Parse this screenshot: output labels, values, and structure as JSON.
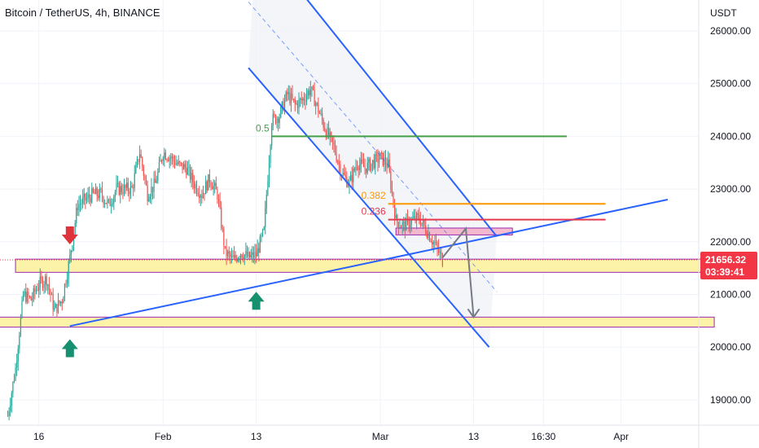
{
  "header": {
    "title": "Bitcoin / TetherUS, 4h, BINANCE"
  },
  "chart_data": {
    "type": "candlestick",
    "currency_label": "USDT",
    "y_ticks": [
      26000,
      25000,
      24000,
      23000,
      22000,
      21000,
      20000,
      19000
    ],
    "y_tick_labels": [
      "26000.00",
      "25000.00",
      "24000.00",
      "23000.00",
      "22000.00",
      "21000.00",
      "20000.00",
      "19000.00"
    ],
    "ylim": [
      18600,
      26500
    ],
    "x_range": [
      "2023-01-11",
      "2023-04-11"
    ],
    "x_ticks": [
      {
        "x": "2023-01-16",
        "label": "16"
      },
      {
        "x": "2023-02-01",
        "label": "Feb"
      },
      {
        "x": "2023-02-13",
        "label": "13"
      },
      {
        "x": "2023-03-01",
        "label": "Mar"
      },
      {
        "x": "2023-03-13",
        "label": "13"
      },
      {
        "x": "2023-03-22",
        "label": "16:30"
      },
      {
        "x": "2023-04-01",
        "label": "Apr"
      }
    ],
    "last_price": 21656.32,
    "last_price_label": "21656.32",
    "countdown": "03:39:41",
    "colors": {
      "up": "#26a69a",
      "down": "#ef5350",
      "channel": "#2962ff",
      "zone_fill": "#fdf3a8",
      "zone_border": "#9c27b0",
      "price_badge": "#f23645",
      "pink_zone": "#f48fb1",
      "projection": "#787b86"
    },
    "price_path": [
      [
        "2023-01-12",
        18700
      ],
      [
        "2023-01-13",
        19600
      ],
      [
        "2023-01-14",
        21000
      ],
      [
        "2023-01-15",
        20900
      ],
      [
        "2023-01-16",
        21200
      ],
      [
        "2023-01-17",
        21300
      ],
      [
        "2023-01-18",
        20700
      ],
      [
        "2023-01-19",
        20900
      ],
      [
        "2023-01-20",
        21700
      ],
      [
        "2023-01-21",
        22700
      ],
      [
        "2023-01-22",
        22800
      ],
      [
        "2023-01-23",
        22900
      ],
      [
        "2023-01-24",
        22900
      ],
      [
        "2023-01-25",
        22700
      ],
      [
        "2023-01-26",
        23000
      ],
      [
        "2023-01-27",
        23000
      ],
      [
        "2023-01-28",
        23000
      ],
      [
        "2023-01-29",
        23700
      ],
      [
        "2023-01-30",
        22900
      ],
      [
        "2023-01-31",
        23100
      ],
      [
        "2023-02-01",
        23700
      ],
      [
        "2023-02-02",
        23600
      ],
      [
        "2023-02-03",
        23450
      ],
      [
        "2023-02-04",
        23400
      ],
      [
        "2023-02-05",
        23100
      ],
      [
        "2023-02-06",
        22900
      ],
      [
        "2023-02-07",
        23200
      ],
      [
        "2023-02-08",
        22900
      ],
      [
        "2023-02-09",
        21800
      ],
      [
        "2023-02-10",
        21650
      ],
      [
        "2023-02-11",
        21800
      ],
      [
        "2023-02-12",
        21700
      ],
      [
        "2023-02-13",
        21750
      ],
      [
        "2023-02-14",
        22200
      ],
      [
        "2023-02-15",
        24300
      ],
      [
        "2023-02-16",
        24400
      ],
      [
        "2023-02-17",
        24800
      ],
      [
        "2023-02-18",
        24600
      ],
      [
        "2023-02-19",
        24700
      ],
      [
        "2023-02-20",
        24900
      ],
      [
        "2023-02-21",
        24500
      ],
      [
        "2023-02-22",
        24100
      ],
      [
        "2023-02-23",
        23800
      ],
      [
        "2023-02-24",
        23300
      ],
      [
        "2023-02-25",
        23100
      ],
      [
        "2023-02-26",
        23500
      ],
      [
        "2023-02-27",
        23400
      ],
      [
        "2023-02-28",
        23500
      ],
      [
        "2023-03-01",
        23600
      ],
      [
        "2023-03-02",
        23450
      ],
      [
        "2023-03-03",
        22400
      ],
      [
        "2023-03-04",
        22300
      ],
      [
        "2023-03-05",
        22400
      ],
      [
        "2023-03-06",
        22450
      ],
      [
        "2023-03-07",
        22200
      ],
      [
        "2023-03-08",
        21950
      ],
      [
        "2023-03-09",
        21656
      ]
    ],
    "markers": [
      {
        "type": "arrow-down",
        "x": "2023-01-20",
        "y": 21950,
        "color": "#e0343d"
      },
      {
        "type": "arrow-up",
        "x": "2023-01-20",
        "y": 20150,
        "color": "#16906e"
      },
      {
        "type": "arrow-up",
        "x": "2023-02-13",
        "y": 21050,
        "color": "#16906e"
      }
    ],
    "zones": [
      {
        "x1": "2023-01-13",
        "x2": "2023-04-13",
        "y1": 21420,
        "y2": 21670
      },
      {
        "x1": "2023-01-10",
        "x2": "2023-04-13",
        "y1": 20380,
        "y2": 20570
      }
    ],
    "pink_zone": {
      "x1": "2023-03-03",
      "x2": "2023-03-18",
      "y1": 22130,
      "y2": 22260
    },
    "fib_lines": [
      {
        "label": "0.5",
        "value": 24000,
        "x1": "2023-02-15",
        "x2": "2023-03-25",
        "color": "#43a047"
      },
      {
        "label": "0.382",
        "value": 22720,
        "x1": "2023-03-02",
        "x2": "2023-03-30",
        "color": "#ff9800"
      },
      {
        "label": "0.236",
        "value": 22420,
        "x1": "2023-03-02",
        "x2": "2023-03-30",
        "color": "#e53950"
      }
    ],
    "channel_lines": [
      {
        "role": "upper",
        "p1": [
          "2023-02-13",
          27800
        ],
        "p2": [
          "2023-03-16",
          22100
        ]
      },
      {
        "role": "lower",
        "p1": [
          "2023-02-12",
          25300
        ],
        "p2": [
          "2023-03-15",
          20000
        ]
      },
      {
        "role": "middle",
        "p1": [
          "2023-02-12",
          26550
        ],
        "p2": [
          "2023-03-16",
          21050
        ]
      }
    ],
    "trendline": {
      "p1": [
        "2023-01-20",
        20400
      ],
      "p2": [
        "2023-04-07",
        22800
      ]
    },
    "projection_path": [
      [
        "2023-03-09",
        21700
      ],
      [
        "2023-03-12",
        22250
      ],
      [
        "2023-03-13",
        20570
      ]
    ]
  }
}
